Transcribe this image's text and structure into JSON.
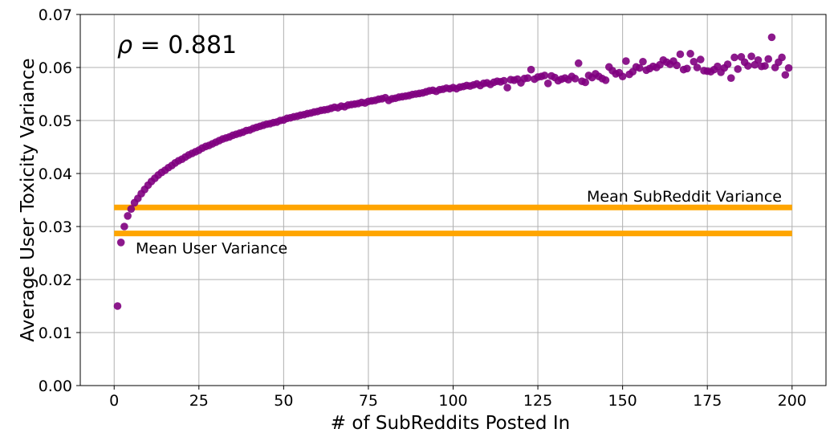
{
  "chart_data": {
    "type": "scatter",
    "xlabel": "# of SubReddits Posted In",
    "ylabel": "Average User Toxicity Variance",
    "xlim": [
      -10,
      210
    ],
    "ylim": [
      0.0,
      0.07
    ],
    "xticks": [
      0,
      25,
      50,
      75,
      100,
      125,
      150,
      175,
      200
    ],
    "xtick_labels": [
      "0",
      "25",
      "50",
      "75",
      "100",
      "125",
      "150",
      "175",
      "200"
    ],
    "yticks": [
      0.0,
      0.01,
      0.02,
      0.03,
      0.04,
      0.05,
      0.06,
      0.07
    ],
    "ytick_labels": [
      "0.00",
      "0.01",
      "0.02",
      "0.03",
      "0.04",
      "0.05",
      "0.06",
      "0.07"
    ],
    "grid": true,
    "point_color": "#800080",
    "annotation": {
      "rho_symbol": "ρ",
      "rho_text": " = 0.881"
    },
    "hlines": [
      {
        "label": "Mean SubReddit Variance",
        "y": 0.0336,
        "x_range": [
          0,
          200
        ],
        "color": "#FFA500",
        "label_side": "right"
      },
      {
        "label": "Mean User Variance",
        "y": 0.0287,
        "x_range": [
          0,
          200
        ],
        "color": "#FFA500",
        "label_side": "left"
      }
    ],
    "points": [
      [
        1,
        0.015
      ],
      [
        2,
        0.027
      ],
      [
        3,
        0.03
      ],
      [
        4,
        0.032
      ],
      [
        5,
        0.0333
      ],
      [
        6,
        0.0345
      ],
      [
        7,
        0.0353
      ],
      [
        8,
        0.0362
      ],
      [
        9,
        0.037
      ],
      [
        10,
        0.0378
      ],
      [
        11,
        0.0385
      ],
      [
        12,
        0.0391
      ],
      [
        13,
        0.0397
      ],
      [
        14,
        0.0402
      ],
      [
        15,
        0.0406
      ],
      [
        16,
        0.0411
      ],
      [
        17,
        0.0415
      ],
      [
        18,
        0.042
      ],
      [
        19,
        0.0424
      ],
      [
        20,
        0.0427
      ],
      [
        21,
        0.0431
      ],
      [
        22,
        0.0435
      ],
      [
        23,
        0.0438
      ],
      [
        24,
        0.0441
      ],
      [
        25,
        0.0444
      ],
      [
        26,
        0.0448
      ],
      [
        27,
        0.0451
      ],
      [
        28,
        0.0453
      ],
      [
        29,
        0.0456
      ],
      [
        30,
        0.0459
      ],
      [
        31,
        0.0462
      ],
      [
        32,
        0.0465
      ],
      [
        33,
        0.0467
      ],
      [
        34,
        0.0469
      ],
      [
        35,
        0.0472
      ],
      [
        36,
        0.0474
      ],
      [
        37,
        0.0476
      ],
      [
        38,
        0.0478
      ],
      [
        39,
        0.0481
      ],
      [
        40,
        0.0482
      ],
      [
        41,
        0.0485
      ],
      [
        42,
        0.0487
      ],
      [
        43,
        0.0489
      ],
      [
        44,
        0.0491
      ],
      [
        45,
        0.0493
      ],
      [
        46,
        0.0494
      ],
      [
        47,
        0.0496
      ],
      [
        48,
        0.0497
      ],
      [
        49,
        0.05
      ],
      [
        50,
        0.0501
      ],
      [
        51,
        0.0504
      ],
      [
        52,
        0.0505
      ],
      [
        53,
        0.0507
      ],
      [
        54,
        0.0508
      ],
      [
        55,
        0.051
      ],
      [
        56,
        0.0511
      ],
      [
        57,
        0.0513
      ],
      [
        58,
        0.0514
      ],
      [
        59,
        0.0516
      ],
      [
        60,
        0.0517
      ],
      [
        61,
        0.0519
      ],
      [
        62,
        0.052
      ],
      [
        63,
        0.0521
      ],
      [
        64,
        0.0523
      ],
      [
        65,
        0.0525
      ],
      [
        66,
        0.0524
      ],
      [
        67,
        0.0527
      ],
      [
        68,
        0.0526
      ],
      [
        69,
        0.0529
      ],
      [
        70,
        0.053
      ],
      [
        71,
        0.0531
      ],
      [
        72,
        0.0532
      ],
      [
        73,
        0.0534
      ],
      [
        74,
        0.0533
      ],
      [
        75,
        0.0536
      ],
      [
        76,
        0.0537
      ],
      [
        77,
        0.0538
      ],
      [
        78,
        0.054
      ],
      [
        79,
        0.0541
      ],
      [
        80,
        0.0543
      ],
      [
        81,
        0.0538
      ],
      [
        82,
        0.0541
      ],
      [
        83,
        0.0542
      ],
      [
        84,
        0.0544
      ],
      [
        85,
        0.0545
      ],
      [
        86,
        0.0546
      ],
      [
        87,
        0.0547
      ],
      [
        88,
        0.0549
      ],
      [
        89,
        0.055
      ],
      [
        90,
        0.0551
      ],
      [
        91,
        0.0552
      ],
      [
        92,
        0.0554
      ],
      [
        93,
        0.0556
      ],
      [
        94,
        0.0557
      ],
      [
        95,
        0.0555
      ],
      [
        96,
        0.0558
      ],
      [
        97,
        0.0559
      ],
      [
        98,
        0.0561
      ],
      [
        99,
        0.056
      ],
      [
        100,
        0.0562
      ],
      [
        101,
        0.056
      ],
      [
        102,
        0.0563
      ],
      [
        103,
        0.0564
      ],
      [
        104,
        0.0566
      ],
      [
        105,
        0.0565
      ],
      [
        106,
        0.0567
      ],
      [
        107,
        0.0569
      ],
      [
        108,
        0.0566
      ],
      [
        109,
        0.057
      ],
      [
        110,
        0.0571
      ],
      [
        111,
        0.0568
      ],
      [
        112,
        0.0572
      ],
      [
        113,
        0.0574
      ],
      [
        114,
        0.0573
      ],
      [
        115,
        0.0575
      ],
      [
        116,
        0.0562
      ],
      [
        117,
        0.0577
      ],
      [
        118,
        0.0576
      ],
      [
        119,
        0.0578
      ],
      [
        120,
        0.0571
      ],
      [
        121,
        0.0579
      ],
      [
        122,
        0.058
      ],
      [
        123,
        0.0596
      ],
      [
        124,
        0.0578
      ],
      [
        125,
        0.0582
      ],
      [
        126,
        0.0583
      ],
      [
        127,
        0.0585
      ],
      [
        128,
        0.057
      ],
      [
        129,
        0.0584
      ],
      [
        130,
        0.0581
      ],
      [
        131,
        0.0575
      ],
      [
        132,
        0.0578
      ],
      [
        133,
        0.058
      ],
      [
        134,
        0.0577
      ],
      [
        135,
        0.0583
      ],
      [
        136,
        0.0579
      ],
      [
        137,
        0.0608
      ],
      [
        138,
        0.0574
      ],
      [
        139,
        0.0572
      ],
      [
        140,
        0.0585
      ],
      [
        141,
        0.0581
      ],
      [
        142,
        0.0588
      ],
      [
        143,
        0.0583
      ],
      [
        144,
        0.0579
      ],
      [
        145,
        0.0576
      ],
      [
        146,
        0.0601
      ],
      [
        147,
        0.0594
      ],
      [
        148,
        0.0588
      ],
      [
        149,
        0.059
      ],
      [
        150,
        0.0583
      ],
      [
        151,
        0.0612
      ],
      [
        152,
        0.0587
      ],
      [
        153,
        0.0592
      ],
      [
        154,
        0.0601
      ],
      [
        155,
        0.0599
      ],
      [
        156,
        0.0611
      ],
      [
        157,
        0.0595
      ],
      [
        158,
        0.0598
      ],
      [
        159,
        0.0602
      ],
      [
        160,
        0.06
      ],
      [
        161,
        0.0605
      ],
      [
        162,
        0.0614
      ],
      [
        163,
        0.061
      ],
      [
        164,
        0.0606
      ],
      [
        165,
        0.0612
      ],
      [
        166,
        0.0604
      ],
      [
        167,
        0.0625
      ],
      [
        168,
        0.0596
      ],
      [
        169,
        0.0598
      ],
      [
        170,
        0.0626
      ],
      [
        171,
        0.0611
      ],
      [
        172,
        0.06
      ],
      [
        173,
        0.0615
      ],
      [
        174,
        0.0594
      ],
      [
        175,
        0.0593
      ],
      [
        176,
        0.0592
      ],
      [
        177,
        0.0596
      ],
      [
        178,
        0.0602
      ],
      [
        179,
        0.0591
      ],
      [
        180,
        0.0599
      ],
      [
        181,
        0.0606
      ],
      [
        182,
        0.058
      ],
      [
        183,
        0.0619
      ],
      [
        184,
        0.0597
      ],
      [
        185,
        0.062
      ],
      [
        186,
        0.061
      ],
      [
        187,
        0.0603
      ],
      [
        188,
        0.0621
      ],
      [
        189,
        0.0605
      ],
      [
        190,
        0.0614
      ],
      [
        191,
        0.0602
      ],
      [
        192,
        0.0603
      ],
      [
        193,
        0.0616
      ],
      [
        194,
        0.0657
      ],
      [
        195,
        0.06
      ],
      [
        196,
        0.061
      ],
      [
        197,
        0.0619
      ],
      [
        198,
        0.0586
      ],
      [
        199,
        0.0599
      ]
    ]
  }
}
